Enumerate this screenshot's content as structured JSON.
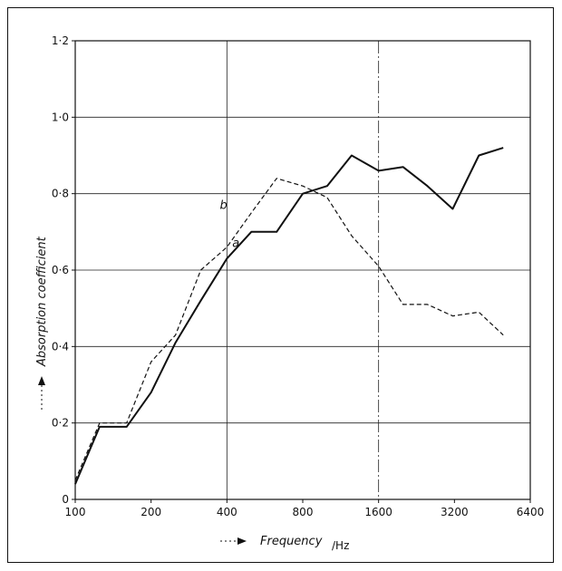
{
  "chart_data": {
    "type": "line",
    "x_scale": "log",
    "x_ticks": [
      100,
      200,
      400,
      800,
      1600,
      3200,
      6400
    ],
    "x_tick_labels": [
      "100",
      "200",
      "400",
      "800",
      "1600",
      "3200",
      "6400"
    ],
    "y_ticks": [
      0,
      0.2,
      0.4,
      0.6,
      0.8,
      1.0,
      1.2
    ],
    "y_tick_labels": [
      "0",
      "0·2",
      "0·4",
      "0·6",
      "0·8",
      "1·0",
      "1·2"
    ],
    "xlim": [
      100,
      6400
    ],
    "ylim": [
      0,
      1.2
    ],
    "xlabel": "Frequency",
    "xunit": "/Hz",
    "ylabel": "Absorption coefficient",
    "grid": true,
    "series": [
      {
        "name": "a",
        "style": "solid",
        "color": "#111111",
        "x": [
          100,
          125,
          160,
          200,
          250,
          315,
          400,
          500,
          630,
          800,
          1000,
          1250,
          1600,
          2000,
          2500,
          3150,
          4000,
          5000
        ],
        "y": [
          0.04,
          0.19,
          0.19,
          0.28,
          0.41,
          0.52,
          0.63,
          0.7,
          0.7,
          0.8,
          0.82,
          0.9,
          0.86,
          0.87,
          0.82,
          0.76,
          0.9,
          0.92
        ]
      },
      {
        "name": "b",
        "style": "dashed",
        "color": "#111111",
        "x": [
          100,
          125,
          160,
          200,
          250,
          315,
          400,
          500,
          630,
          800,
          1000,
          1250,
          1600,
          2000,
          2500,
          3150,
          4000,
          5000
        ],
        "y": [
          0.05,
          0.2,
          0.2,
          0.36,
          0.43,
          0.6,
          0.66,
          0.75,
          0.84,
          0.82,
          0.79,
          0.69,
          0.61,
          0.51,
          0.51,
          0.48,
          0.49,
          0.43
        ]
      }
    ]
  }
}
